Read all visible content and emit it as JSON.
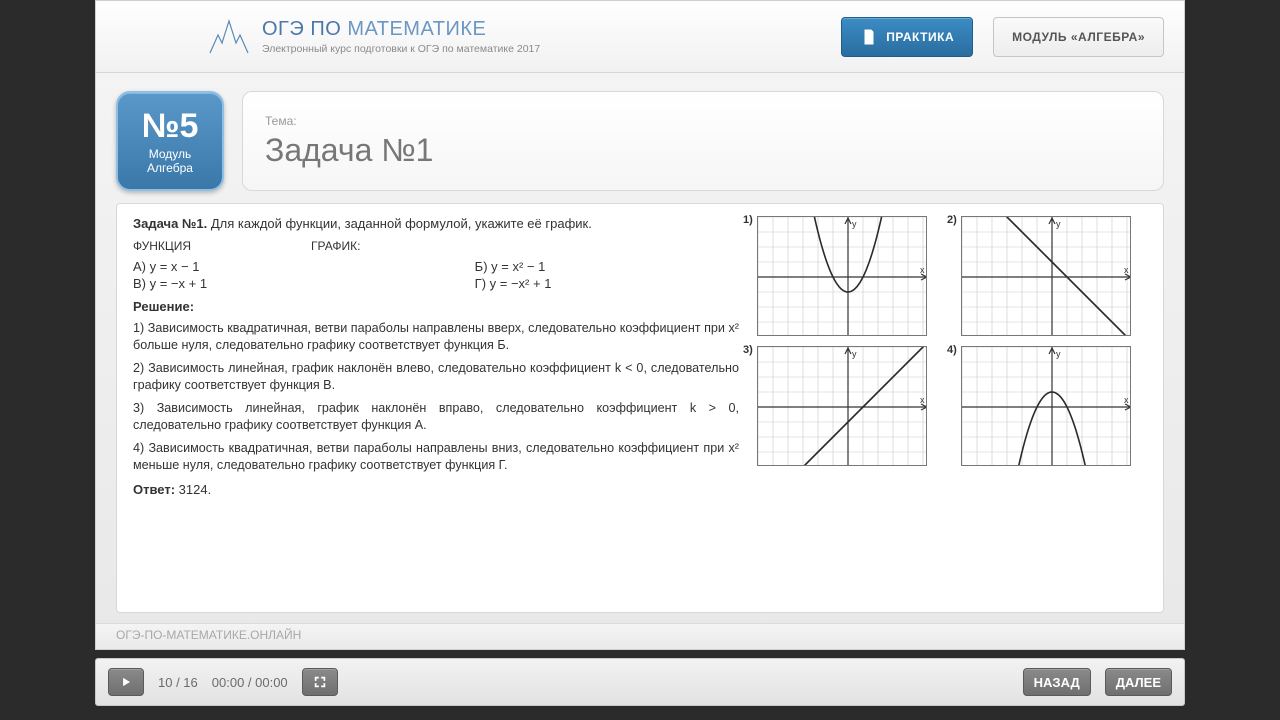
{
  "header": {
    "title_a": "ОГЭ ПО ",
    "title_b": "МАТЕМАТИКЕ",
    "subtitle": "Электронный курс подготовки к ОГЭ по математике 2017",
    "btn_practice": "ПРАКТИКА",
    "btn_module": "МОДУЛЬ «АЛГЕБРА»"
  },
  "badge": {
    "number": "№5",
    "line1": "Модуль",
    "line2": "Алгебра"
  },
  "title_card": {
    "meta": "Тема:",
    "title": "Задача №1"
  },
  "problem": {
    "statement_bold": "Задача №1.",
    "statement_rest": " Для каждой функции, заданной формулой, укажите её график.",
    "func_label": "ФУНКЦИЯ",
    "graph_label": "ГРАФИК:",
    "funcs": {
      "a": "А) y = x − 1",
      "b": "Б) y = x² − 1",
      "v": "В) y = −x + 1",
      "g": "Г) y = −x² + 1"
    },
    "solution_header": "Решение:",
    "solutions": [
      "1) Зависимость квадратичная, ветви параболы направлены вверх, следовательно коэффициент при x² больше нуля, следовательно графику соответствует функция Б.",
      "2) Зависимость линейная, график наклонён влево, следовательно коэффициент k < 0, следовательно графику соответствует функция В.",
      "3) Зависимость линейная, график наклонён вправо, следовательно коэффициент k > 0, следовательно графику соответствует функция А.",
      "4) Зависимость квадратичная, ветви параболы направлены вниз, следовательно коэффициент при x² меньше нуля, следовательно графику соответствует функция Г."
    ],
    "answer_label": "Ответ:",
    "answer_value": " 3124."
  },
  "graphs": {
    "width": 170,
    "height": 120,
    "grid_color": "#c9c9c9",
    "axis_color": "#333333",
    "curve_color": "#2a2a2a",
    "curve_width": 1.6,
    "cell": 15,
    "panels": [
      {
        "num": "1)",
        "type": "parabola_up",
        "vertex_y": -1
      },
      {
        "num": "2)",
        "type": "line",
        "slope": -1,
        "intercept": 1
      },
      {
        "num": "3)",
        "type": "line",
        "slope": 1,
        "intercept": -1
      },
      {
        "num": "4)",
        "type": "parabola_down",
        "vertex_y": 1
      }
    ]
  },
  "footer_link": "ОГЭ-ПО-МАТЕМАТИКЕ.ОНЛАЙН",
  "player": {
    "slide": "10 / 16",
    "time": "00:00 / 00:00",
    "back": "НАЗАД",
    "next": "ДАЛЕЕ"
  },
  "colors": {
    "brand_blue": "#3a78aa",
    "brand_light": "#5a98c9"
  }
}
